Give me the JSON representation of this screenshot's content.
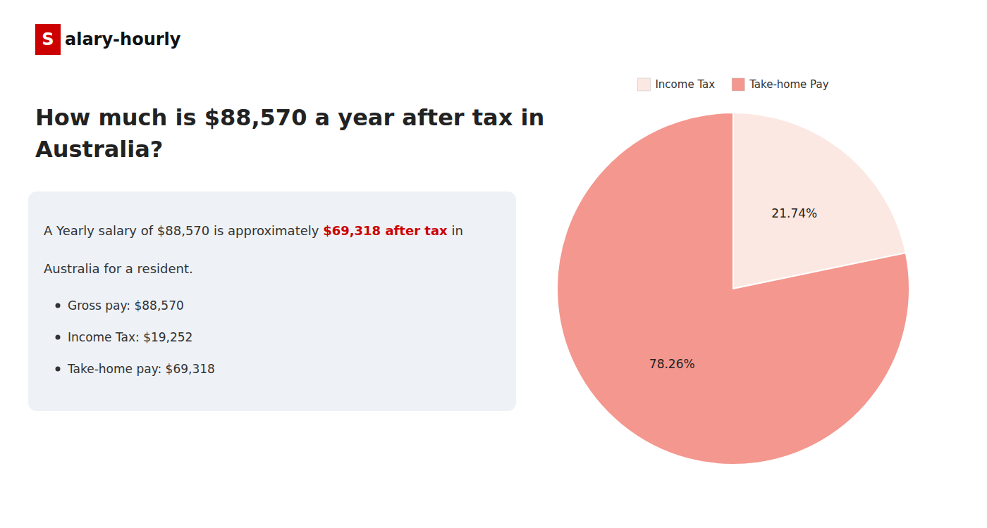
{
  "chart_data": {
    "type": "pie",
    "title": "How much is $88,570 a year after tax in\nAustralia?",
    "annotations": [
      {
        "text": "S",
        "color": "#cc0000"
      },
      {
        "text": "alary-hourly"
      },
      {
        "text": "A Yearly salary of $88,570 is approximately "
      },
      {
        "text": "$69,318 after tax",
        "color": "#cc0000"
      },
      {
        "text": " in"
      },
      {
        "text": "Australia for a resident."
      },
      {
        "text": "Gross pay: $88,570"
      },
      {
        "text": "Income Tax: $19,252"
      },
      {
        "text": "Take-home pay: $69,318"
      }
    ],
    "categories": [
      "Income Tax",
      "Take-home Pay"
    ],
    "values": [
      21.74,
      78.26
    ],
    "value_labels": [
      "21.74%",
      "78.26%"
    ],
    "colors": [
      "#fce8e2",
      "#f4978e"
    ],
    "data_labels": true,
    "legend": "top"
  }
}
